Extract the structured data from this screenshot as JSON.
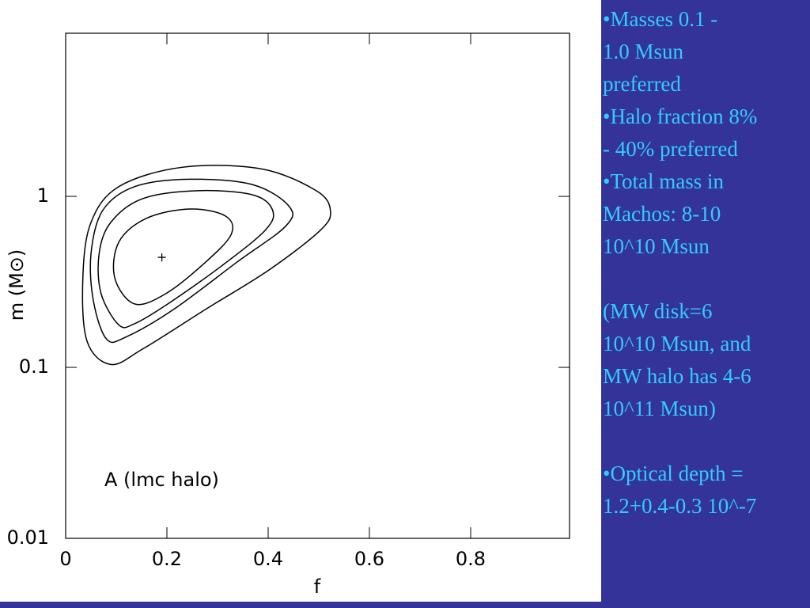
{
  "chart_data": {
    "type": "contour",
    "xlabel": "f",
    "ylabel": "m   (M⊙)",
    "annotation": "A (lmc halo)",
    "xlim": [
      0,
      1
    ],
    "ylim": [
      0.01,
      9
    ],
    "ylog": true,
    "xticks": [
      0,
      0.2,
      0.4,
      0.6,
      0.8
    ],
    "yticks": [
      0.01,
      0.1,
      1
    ],
    "color": "#000000",
    "contours": [
      {
        "x": [
          0.089,
          0.042,
          0.034,
          0.05,
          0.105,
          0.23,
          0.386,
          0.495,
          0.523,
          0.503,
          0.402,
          0.277,
          0.152
        ],
        "y": [
          0.104,
          0.143,
          0.334,
          0.704,
          1.14,
          1.48,
          1.45,
          1.08,
          0.826,
          0.633,
          0.372,
          0.219,
          0.128
        ]
      },
      {
        "x": [
          0.081,
          0.055,
          0.05,
          0.073,
          0.136,
          0.245,
          0.37,
          0.442,
          0.434,
          0.339,
          0.214,
          0.12
        ],
        "y": [
          0.146,
          0.243,
          0.46,
          0.826,
          1.14,
          1.26,
          1.17,
          0.87,
          0.667,
          0.414,
          0.219,
          0.151
        ]
      },
      {
        "x": [
          0.105,
          0.07,
          0.066,
          0.089,
          0.152,
          0.261,
          0.37,
          0.409,
          0.394,
          0.308,
          0.198,
          0.136
        ],
        "y": [
          0.177,
          0.27,
          0.46,
          0.704,
          0.97,
          1.08,
          1.02,
          0.826,
          0.633,
          0.392,
          0.231,
          0.18
        ]
      },
      {
        "x": [
          0.136,
          0.097,
          0.105,
          0.159,
          0.245,
          0.316,
          0.327,
          0.277,
          0.198
        ],
        "y": [
          0.235,
          0.334,
          0.54,
          0.743,
          0.844,
          0.767,
          0.6,
          0.414,
          0.27
        ]
      }
    ],
    "best_fit": {
      "x": 0.19,
      "y": 0.44
    }
  },
  "slide_text": [
    [
      "•Masses 0.1 -",
      "1.0 Msun",
      "preferred"
    ],
    [
      "•Halo fraction 8%",
      "- 40% preferred"
    ],
    [
      "•Total mass in",
      "Machos: 8-10",
      "10^10 Msun"
    ],
    [
      "(MW disk=6",
      "10^10 Msun, and",
      "MW halo has 4-6",
      "10^11 Msun)"
    ],
    [
      "•Optical depth =",
      "1.2+0.4-0.3 10^-7"
    ]
  ]
}
